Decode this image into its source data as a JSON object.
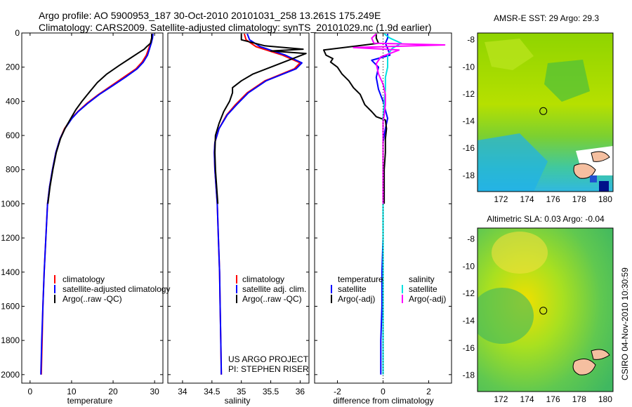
{
  "header": {
    "line1": "Argo profile: AO 5900953_187 30-Oct-2010 20101031_258 13.261S 175.249E",
    "line2": "Climatology: CARS2009. Satellite-adjusted climatology: synTS_20101029.nc (1.9d earlier)"
  },
  "colors": {
    "climatology": "#ff0000",
    "satellite": "#0000ff",
    "argo": "#000000",
    "sat_salinity": "#00e0e0",
    "argo_adj_salinity": "#ff00ff"
  },
  "chart_data": [
    {
      "type": "line",
      "id": "temperature",
      "xlabel": "temperature",
      "ylabel": "",
      "xlim": [
        -2,
        32
      ],
      "ylim": [
        2050,
        0
      ],
      "xticks": [
        0,
        10,
        20,
        30
      ],
      "yticks": [
        0,
        200,
        400,
        600,
        800,
        1000,
        1200,
        1400,
        1600,
        1800,
        2000
      ],
      "legend": [
        "climatology",
        "satellite-adjusted climatology",
        "Argo(..raw -QC)"
      ],
      "series": [
        {
          "name": "climatology",
          "color": "#ff0000",
          "points": [
            [
              29.4,
              5
            ],
            [
              29.3,
              30
            ],
            [
              29.0,
              60
            ],
            [
              28.6,
              90
            ],
            [
              28.0,
              130
            ],
            [
              27.0,
              170
            ],
            [
              25.5,
              210
            ],
            [
              22.5,
              260
            ],
            [
              19.5,
              310
            ],
            [
              16.5,
              360
            ],
            [
              13.8,
              410
            ],
            [
              11.5,
              460
            ],
            [
              10.0,
              500
            ],
            [
              8.3,
              560
            ],
            [
              7.2,
              620
            ],
            [
              6.2,
              700
            ],
            [
              5.4,
              800
            ],
            [
              4.7,
              900
            ],
            [
              4.2,
              1000
            ],
            [
              3.8,
              1200
            ],
            [
              3.4,
              1400
            ],
            [
              3.1,
              1600
            ],
            [
              2.9,
              1800
            ],
            [
              2.7,
              2000
            ]
          ]
        },
        {
          "name": "satellite-adjusted climatology",
          "color": "#0000ff",
          "points": [
            [
              29.6,
              5
            ],
            [
              29.5,
              30
            ],
            [
              29.2,
              60
            ],
            [
              28.8,
              90
            ],
            [
              28.3,
              130
            ],
            [
              27.3,
              170
            ],
            [
              25.8,
              210
            ],
            [
              22.9,
              260
            ],
            [
              19.8,
              310
            ],
            [
              16.7,
              360
            ],
            [
              14.0,
              410
            ],
            [
              11.6,
              460
            ],
            [
              10.1,
              500
            ],
            [
              8.4,
              560
            ],
            [
              7.2,
              620
            ],
            [
              6.2,
              700
            ],
            [
              5.4,
              800
            ],
            [
              4.7,
              900
            ],
            [
              4.2,
              1000
            ],
            [
              3.8,
              1200
            ],
            [
              3.4,
              1400
            ],
            [
              3.1,
              1600
            ],
            [
              2.8,
              1800
            ],
            [
              2.6,
              2000
            ]
          ]
        },
        {
          "name": "Argo(..raw -QC)",
          "color": "#000000",
          "points": [
            [
              29.3,
              5
            ],
            [
              29.3,
              30
            ],
            [
              29.0,
              60
            ],
            [
              28.1,
              80
            ],
            [
              27.5,
              95
            ],
            [
              26.5,
              110
            ],
            [
              24.0,
              150
            ],
            [
              21.5,
              190
            ],
            [
              18.5,
              240
            ],
            [
              16.2,
              290
            ],
            [
              14.5,
              340
            ],
            [
              12.5,
              400
            ],
            [
              11.0,
              450
            ],
            [
              9.8,
              500
            ],
            [
              8.4,
              560
            ],
            [
              7.3,
              620
            ],
            [
              6.3,
              700
            ],
            [
              5.5,
              800
            ],
            [
              4.8,
              900
            ],
            [
              4.3,
              1000
            ]
          ]
        }
      ]
    },
    {
      "type": "line",
      "id": "salinity",
      "xlabel": "salinity",
      "xlim": [
        33.75,
        36.15
      ],
      "ylim": [
        2050,
        0
      ],
      "xticks": [
        34,
        34.5,
        35,
        35.5,
        36
      ],
      "legend": [
        "climatology",
        "satellite adj. clim.",
        "Argo(..raw -QC)"
      ],
      "annotations": [
        "US ARGO PROJECT",
        "PI: STEPHEN RISER"
      ],
      "series": [
        {
          "name": "climatology",
          "color": "#ff0000",
          "points": [
            [
              35.05,
              5
            ],
            [
              35.08,
              40
            ],
            [
              35.25,
              80
            ],
            [
              35.7,
              130
            ],
            [
              36.0,
              175
            ],
            [
              35.9,
              210
            ],
            [
              35.4,
              280
            ],
            [
              35.1,
              350
            ],
            [
              34.9,
              420
            ],
            [
              34.75,
              480
            ],
            [
              34.62,
              560
            ],
            [
              34.55,
              640
            ],
            [
              34.54,
              700
            ],
            [
              34.55,
              800
            ],
            [
              34.57,
              900
            ],
            [
              34.59,
              1000
            ],
            [
              34.61,
              1200
            ],
            [
              34.63,
              1400
            ],
            [
              34.64,
              1600
            ],
            [
              34.65,
              1800
            ],
            [
              34.66,
              2000
            ]
          ]
        },
        {
          "name": "satellite adj. clim.",
          "color": "#0000ff",
          "points": [
            [
              35.1,
              5
            ],
            [
              35.14,
              40
            ],
            [
              35.32,
              80
            ],
            [
              35.75,
              130
            ],
            [
              36.03,
              175
            ],
            [
              35.93,
              210
            ],
            [
              35.42,
              280
            ],
            [
              35.12,
              350
            ],
            [
              34.92,
              420
            ],
            [
              34.76,
              480
            ],
            [
              34.62,
              560
            ],
            [
              34.55,
              640
            ],
            [
              34.54,
              700
            ],
            [
              34.55,
              800
            ],
            [
              34.57,
              900
            ],
            [
              34.59,
              1000
            ],
            [
              34.61,
              1200
            ],
            [
              34.63,
              1400
            ],
            [
              34.64,
              1600
            ],
            [
              34.65,
              1800
            ],
            [
              34.66,
              2000
            ]
          ]
        },
        {
          "name": "Argo(..raw -QC)",
          "color": "#000000",
          "points": [
            [
              35.0,
              5
            ],
            [
              35.0,
              40
            ],
            [
              35.4,
              75
            ],
            [
              36.05,
              95
            ],
            [
              35.5,
              105
            ],
            [
              36.1,
              120
            ],
            [
              35.8,
              160
            ],
            [
              35.5,
              200
            ],
            [
              35.2,
              240
            ],
            [
              35.0,
              280
            ],
            [
              34.85,
              320
            ],
            [
              34.85,
              350
            ],
            [
              34.8,
              400
            ],
            [
              34.7,
              460
            ],
            [
              34.62,
              530
            ],
            [
              34.56,
              600
            ],
            [
              34.55,
              700
            ],
            [
              34.56,
              800
            ],
            [
              34.58,
              900
            ],
            [
              34.6,
              1000
            ]
          ]
        }
      ]
    },
    {
      "type": "line",
      "id": "difference",
      "xlabel": "difference from climatology",
      "xlim": [
        -3,
        3
      ],
      "ylim": [
        2050,
        0
      ],
      "xticks": [
        -2,
        0,
        2
      ],
      "legend_temperature": [
        "temperature",
        "satellite",
        "Argo(-adj)"
      ],
      "legend_salinity": [
        "salinity",
        "satellite",
        "Argo(-adj)"
      ],
      "series": [
        {
          "name": "temperature satellite",
          "color": "#0000ff",
          "points": [
            [
              0.2,
              5
            ],
            [
              0.2,
              30
            ],
            [
              0.1,
              60
            ],
            [
              0.2,
              90
            ],
            [
              0.3,
              130
            ],
            [
              -0.5,
              160
            ],
            [
              -0.2,
              200
            ],
            [
              -0.3,
              260
            ],
            [
              -0.2,
              330
            ],
            [
              0.0,
              400
            ],
            [
              0.2,
              500
            ],
            [
              0.1,
              560
            ],
            [
              0.0,
              640
            ],
            [
              0.0,
              700
            ],
            [
              0.0,
              800
            ],
            [
              0.0,
              1000
            ],
            [
              0.0,
              1200
            ],
            [
              -0.05,
              1400
            ],
            [
              -0.05,
              1600
            ],
            [
              -0.1,
              1800
            ],
            [
              -0.1,
              2000
            ]
          ]
        },
        {
          "name": "temperature Argo(-adj)",
          "color": "#000000",
          "points": [
            [
              -0.3,
              5
            ],
            [
              -0.3,
              30
            ],
            [
              -0.2,
              60
            ],
            [
              -2.6,
              100
            ],
            [
              -2.5,
              130
            ],
            [
              -2.2,
              150
            ],
            [
              -2.3,
              170
            ],
            [
              -2.0,
              200
            ],
            [
              -1.8,
              240
            ],
            [
              -1.5,
              280
            ],
            [
              -1.3,
              320
            ],
            [
              -1.0,
              360
            ],
            [
              -0.8,
              420
            ],
            [
              -0.5,
              460
            ],
            [
              -0.3,
              490
            ],
            [
              0.1,
              510
            ],
            [
              0.15,
              560
            ],
            [
              0.1,
              620
            ],
            [
              0.1,
              700
            ],
            [
              0.05,
              800
            ],
            [
              0.05,
              1000
            ]
          ]
        },
        {
          "name": "salinity satellite",
          "color": "#00e0e0",
          "points": [
            [
              0.05,
              5
            ],
            [
              0.3,
              30
            ],
            [
              0.8,
              60
            ],
            [
              0.4,
              90
            ],
            [
              0.2,
              130
            ],
            [
              0.2,
              200
            ],
            [
              0.1,
              260
            ],
            [
              0.1,
              330
            ],
            [
              0.05,
              400
            ],
            [
              0.0,
              500
            ],
            [
              0.0,
              600
            ],
            [
              0.0,
              700
            ],
            [
              0.0,
              800
            ],
            [
              0.0,
              1000
            ],
            [
              0.0,
              1200
            ],
            [
              0.0,
              1400
            ],
            [
              0.0,
              1600
            ],
            [
              0.0,
              1800
            ],
            [
              0.0,
              2000
            ]
          ]
        },
        {
          "name": "salinity Argo(-adj)",
          "color": "#ff00ff",
          "points": [
            [
              -0.3,
              5
            ],
            [
              -0.5,
              30
            ],
            [
              -0.4,
              60
            ],
            [
              2.7,
              70
            ],
            [
              -1.3,
              85
            ],
            [
              0.7,
              100
            ],
            [
              -0.1,
              140
            ],
            [
              -0.3,
              180
            ],
            [
              -0.2,
              240
            ],
            [
              0.0,
              300
            ],
            [
              0.1,
              360
            ],
            [
              0.1,
              420
            ],
            [
              0.05,
              480
            ],
            [
              0.0,
              520
            ],
            [
              0.0,
              600
            ],
            [
              0.0,
              700
            ],
            [
              0.0,
              800
            ],
            [
              0.0,
              1000
            ]
          ]
        }
      ]
    },
    {
      "type": "heatmap",
      "id": "sst_map",
      "title": "AMSR-E SST: 29 Argo: 29.3",
      "xlim": [
        170.2,
        180.6
      ],
      "ylim": [
        -19.2,
        -7.5
      ],
      "xticks": [
        172,
        174,
        176,
        178,
        180
      ],
      "yticks": [
        -8,
        -10,
        -12,
        -14,
        -16,
        -18
      ],
      "marker": {
        "lon": 175.249,
        "lat": -13.261
      }
    },
    {
      "type": "heatmap",
      "id": "sla_map",
      "title": "Altimetric SLA: 0.03 Argo: -0.04",
      "xlim": [
        170.2,
        180.6
      ],
      "ylim": [
        -19.2,
        -7.2
      ],
      "xticks": [
        172,
        174,
        176,
        178,
        180
      ],
      "yticks": [
        -8,
        -10,
        -12,
        -14,
        -16,
        -18
      ],
      "marker": {
        "lon": 175.249,
        "lat": -13.261
      }
    }
  ],
  "footer": {
    "side_label": "CSIRO 04-Nov-2010 10:30:59"
  }
}
